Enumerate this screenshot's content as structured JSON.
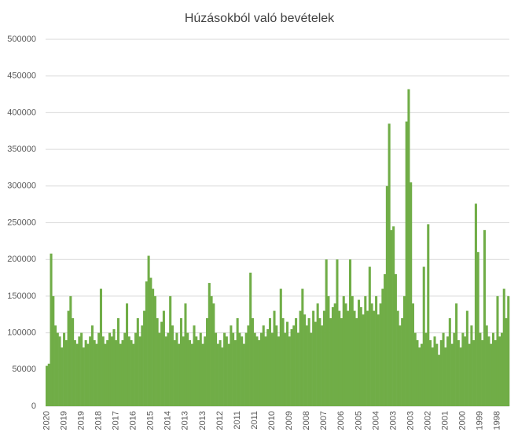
{
  "chart_data": {
    "type": "bar",
    "title": "Húzásokból való bevételek",
    "categories": [
      "2020",
      null,
      null,
      null,
      null,
      null,
      null,
      null,
      "2019",
      null,
      null,
      null,
      null,
      null,
      null,
      null,
      "2019",
      null,
      null,
      null,
      null,
      null,
      null,
      null,
      "2018",
      null,
      null,
      null,
      null,
      null,
      null,
      null,
      "2017",
      null,
      null,
      null,
      null,
      null,
      null,
      null,
      "2016",
      null,
      null,
      null,
      null,
      null,
      null,
      null,
      "2015",
      null,
      null,
      null,
      null,
      null,
      null,
      null,
      "2014",
      null,
      null,
      null,
      null,
      null,
      null,
      null,
      "2013",
      null,
      null,
      null,
      null,
      null,
      null,
      null,
      "2013",
      null,
      null,
      null,
      null,
      null,
      null,
      null,
      "2012",
      null,
      null,
      null,
      null,
      null,
      null,
      null,
      "2011",
      null,
      null,
      null,
      null,
      null,
      null,
      null,
      "2011",
      null,
      null,
      null,
      null,
      null,
      null,
      null,
      "2010",
      null,
      null,
      null,
      null,
      null,
      null,
      null,
      "2009",
      null,
      null,
      null,
      null,
      null,
      null,
      null,
      "2008",
      null,
      null,
      null,
      null,
      null,
      null,
      null,
      "2007",
      null,
      null,
      null,
      null,
      null,
      null,
      null,
      "2006",
      null,
      null,
      null,
      null,
      null,
      null,
      null,
      "2005",
      null,
      null,
      null,
      null,
      null,
      null,
      null,
      "2004",
      null,
      null,
      null,
      null,
      null,
      null,
      null,
      "2003",
      null,
      null,
      null,
      null,
      null,
      null,
      null,
      "2003",
      null,
      null,
      null,
      null,
      null,
      null,
      null,
      "2002",
      null,
      null,
      null,
      null,
      null,
      null,
      null,
      "2001",
      null,
      null,
      null,
      null,
      null,
      null,
      null,
      "2000",
      null,
      null,
      null,
      null,
      null,
      null,
      null,
      "1999",
      null,
      null,
      null,
      null,
      null,
      null,
      null,
      "1998",
      null,
      null,
      null,
      null,
      null
    ],
    "values": [
      55000,
      58000,
      208000,
      150000,
      110000,
      100000,
      95000,
      80000,
      100000,
      90000,
      130000,
      150000,
      120000,
      90000,
      85000,
      95000,
      100000,
      80000,
      90000,
      85000,
      95000,
      110000,
      90000,
      85000,
      100000,
      160000,
      95000,
      85000,
      90000,
      100000,
      95000,
      105000,
      90000,
      120000,
      85000,
      90000,
      100000,
      140000,
      95000,
      90000,
      85000,
      100000,
      120000,
      95000,
      110000,
      130000,
      170000,
      205000,
      175000,
      160000,
      150000,
      120000,
      100000,
      115000,
      130000,
      95000,
      100000,
      150000,
      110000,
      90000,
      100000,
      85000,
      120000,
      95000,
      140000,
      100000,
      90000,
      85000,
      110000,
      95000,
      90000,
      100000,
      85000,
      95000,
      120000,
      168000,
      150000,
      140000,
      100000,
      85000,
      90000,
      80000,
      100000,
      95000,
      85000,
      110000,
      100000,
      90000,
      120000,
      100000,
      95000,
      85000,
      100000,
      110000,
      182000,
      120000,
      100000,
      95000,
      90000,
      100000,
      110000,
      95000,
      105000,
      120000,
      100000,
      130000,
      110000,
      95000,
      160000,
      120000,
      100000,
      115000,
      95000,
      105000,
      110000,
      120000,
      100000,
      130000,
      160000,
      125000,
      110000,
      120000,
      100000,
      130000,
      115000,
      140000,
      120000,
      110000,
      130000,
      200000,
      150000,
      120000,
      135000,
      140000,
      200000,
      130000,
      120000,
      150000,
      140000,
      130000,
      200000,
      150000,
      130000,
      120000,
      145000,
      135000,
      125000,
      150000,
      130000,
      190000,
      140000,
      130000,
      150000,
      125000,
      140000,
      160000,
      180000,
      300000,
      385000,
      240000,
      245000,
      180000,
      130000,
      110000,
      120000,
      150000,
      388000,
      432000,
      305000,
      140000,
      100000,
      90000,
      80000,
      85000,
      190000,
      100000,
      248000,
      90000,
      80000,
      95000,
      85000,
      70000,
      90000,
      100000,
      80000,
      95000,
      120000,
      85000,
      100000,
      140000,
      90000,
      80000,
      100000,
      95000,
      130000,
      85000,
      110000,
      90000,
      276000,
      210000,
      100000,
      90000,
      240000,
      110000,
      95000,
      85000,
      100000,
      90000,
      150000,
      95000,
      100000,
      160000,
      120000,
      150000
    ],
    "color": "#70ad47",
    "ylim": [
      0,
      500000
    ],
    "yticks": [
      0,
      50000,
      100000,
      150000,
      200000,
      250000,
      300000,
      350000,
      400000,
      450000,
      500000
    ],
    "grid": true
  }
}
